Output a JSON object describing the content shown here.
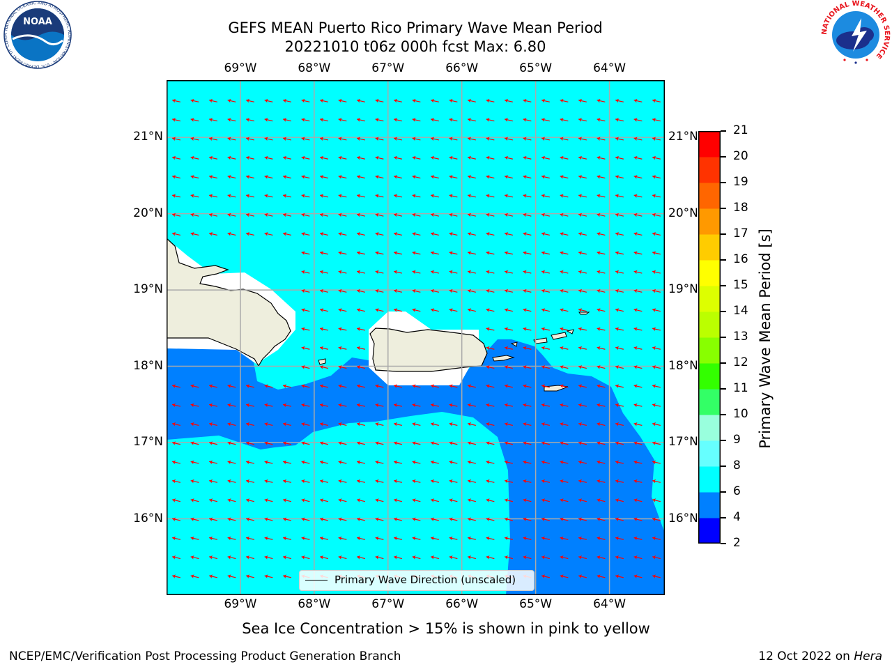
{
  "header": {
    "title_line1": "GEFS MEAN Puerto Rico Primary Wave Mean Period",
    "title_line2": "20221010 t06z 000h fcst   Max: 6.80"
  },
  "logos": {
    "noaa_text": "NOAA",
    "noaa_ring_text": "NATIONAL OCEANIC AND ATMOSPHERIC ADMINISTRATION · U.S. DEPARTMENT OF COMMERCE",
    "nws_ring_text": "NATIONAL WEATHER SERVICE"
  },
  "map": {
    "lon_labels": [
      "69°W",
      "68°W",
      "67°W",
      "66°W",
      "65°W",
      "64°W"
    ],
    "lat_labels": [
      "21°N",
      "20°N",
      "19°N",
      "18°N",
      "17°N",
      "16°N"
    ],
    "lon_range": [
      -70.0,
      -63.25
    ],
    "lat_range": [
      15.0,
      21.75
    ],
    "arrow_direction": "toward west-southwest",
    "colors": {
      "ocean_6_8": "#00ffff",
      "band_4_6": "#0080ff",
      "land": "#eeeedd",
      "no_data": "#ffffff",
      "arrows": "#ff0000",
      "grid": "#aaaaaa"
    }
  },
  "legend": {
    "label": "Primary Wave Direction (unscaled)"
  },
  "colorbar": {
    "label": "Primary Wave Mean Period [s]",
    "ticks": [
      "21",
      "20",
      "19",
      "18",
      "17",
      "16",
      "15",
      "14",
      "13",
      "12",
      "11",
      "10",
      "9",
      "8",
      "6",
      "4",
      "2"
    ],
    "colors_bottom_to_top": [
      "#0000ff",
      "#0080ff",
      "#00ffff",
      "#66ffff",
      "#99ffdd",
      "#33ff66",
      "#33ff00",
      "#88ff00",
      "#bbff00",
      "#ddff00",
      "#ffff00",
      "#ffcc00",
      "#ff9900",
      "#ff6600",
      "#ff3300",
      "#ff0000"
    ]
  },
  "caption": "Sea Ice Concentration > 15% is shown in pink to yellow",
  "footer": {
    "left": "NCEP/EMC/Verification Post Processing Product Generation Branch",
    "right_prefix": "12 Oct 2022 on ",
    "right_machine": "Hera"
  }
}
